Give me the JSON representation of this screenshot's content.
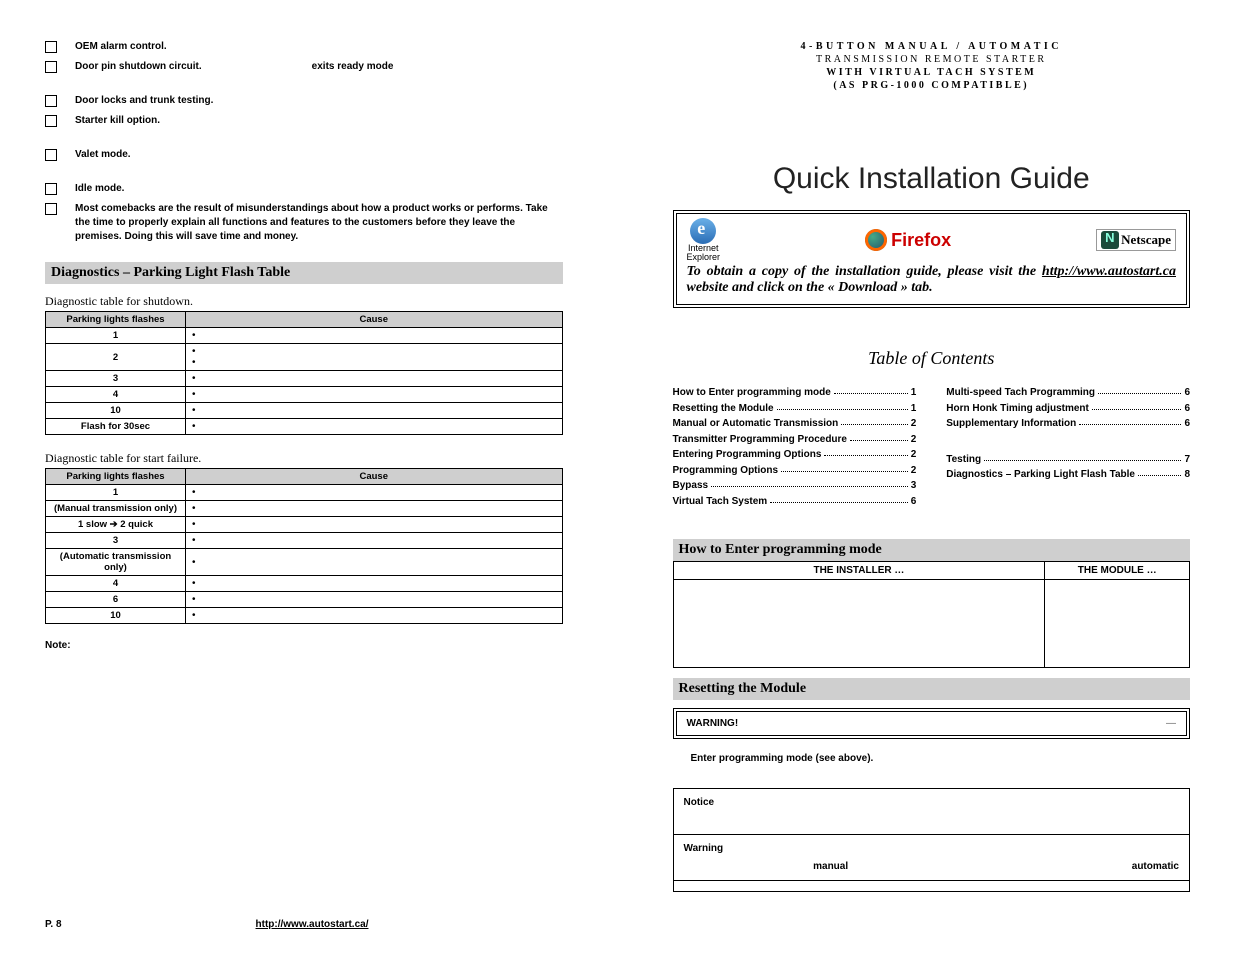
{
  "left": {
    "checklist": [
      {
        "text": "OEM alarm control.",
        "note": ""
      },
      {
        "text": "Door pin shutdown circuit.",
        "note": "exits ready mode"
      },
      {
        "spacer": true
      },
      {
        "text": "Door locks and trunk testing.",
        "note": ""
      },
      {
        "text": "Starter kill option.",
        "note": ""
      },
      {
        "spacer": true
      },
      {
        "text": "Valet mode.",
        "note": ""
      },
      {
        "spacer": true
      },
      {
        "text": "Idle mode.",
        "note": ""
      },
      {
        "text": "Most comebacks are the result of misunderstandings about how a product works or performs. Take the time to properly explain all functions and features to the customers before they leave the premises. Doing this will save time and money.",
        "note": ""
      }
    ],
    "diag_header": "Diagnostics – Parking Light Flash Table",
    "shutdown_caption": "Diagnostic table for shutdown.",
    "start_caption": "Diagnostic table for start failure.",
    "col_flash": "Parking lights flashes",
    "col_cause": "Cause",
    "shutdown_rows": [
      {
        "flash": "1",
        "bullets": 1
      },
      {
        "flash": "2",
        "bullets": 2
      },
      {
        "flash": "3",
        "bullets": 1
      },
      {
        "flash": "4",
        "bullets": 1
      },
      {
        "flash": "10",
        "bullets": 1
      },
      {
        "flash": "Flash for 30sec",
        "bullets": 1
      }
    ],
    "start_rows": [
      {
        "flash": "1",
        "bullets": 1
      },
      {
        "flash": "(Manual transmission only)",
        "bullets": 1
      },
      {
        "flash": "1 slow ➔ 2 quick",
        "bullets": 1
      },
      {
        "flash": "3",
        "bullets": 1
      },
      {
        "flash": "(Automatic transmission only)",
        "bullets": 1
      },
      {
        "flash": "4",
        "bullets": 1
      },
      {
        "flash": "6",
        "bullets": 1
      },
      {
        "flash": "10",
        "bullets": 1
      }
    ],
    "note": "Note:",
    "footer_page": "P. 8",
    "footer_url": "http://www.autostart.ca/"
  },
  "right": {
    "hdr_line1": "4-BUTTON MANUAL / AUTOMATIC",
    "hdr_line2": "TRANSMISSION REMOTE STARTER",
    "hdr_line3a": "WITH ",
    "hdr_line3b": "VIRTUAL TACH SYSTEM",
    "hdr_line4": "(AS PRG-1000 COMPATIBLE)",
    "title": "Quick Installation Guide",
    "ie_label": "Internet\nExplorer",
    "ff_label": "Firefox",
    "ns_label": "Netscape",
    "browser_text_a": "To obtain a copy of the installation guide, please visit the ",
    "browser_url": "http://www.autostart.ca",
    "browser_text_b": " website and click on the « Download » tab.",
    "toc_title": "Table of Contents",
    "toc_left": [
      {
        "label": "How to Enter programming mode",
        "pg": "1"
      },
      {
        "label": "Resetting the Module",
        "pg": "1"
      },
      {
        "label": "Manual or Automatic Transmission",
        "pg": "2"
      },
      {
        "label": "Transmitter Programming Procedure",
        "pg": "2"
      },
      {
        "label": "Entering Programming Options",
        "pg": "2"
      },
      {
        "label": "Programming Options",
        "pg": "2"
      },
      {
        "label": "Bypass",
        "pg": "3"
      },
      {
        "label": "Virtual Tach System",
        "pg": "6"
      }
    ],
    "toc_right": [
      {
        "label": "Multi-speed Tach Programming",
        "pg": "6"
      },
      {
        "label": "Horn Honk Timing adjustment",
        "pg": "6"
      },
      {
        "label": "Supplementary Information",
        "pg": "6"
      },
      {
        "gap": true
      },
      {
        "label": "Testing",
        "pg": "7"
      },
      {
        "label": "Diagnostics – Parking Light Flash Table",
        "pg": "8"
      }
    ],
    "sec_enter": "How to Enter programming mode",
    "th_installer": "THE INSTALLER …",
    "th_module": "THE MODULE …",
    "sec_reset": "Resetting the Module",
    "warning_label": "WARNING!",
    "step1": "Enter programming mode (see above).",
    "notice_label": "Notice",
    "warning2_label": "Warning",
    "kw_manual": "manual",
    "kw_auto": "automatic"
  },
  "colors": {
    "section_bg": "#cfcfcf",
    "text": "#000000",
    "ff_red": "#cc0000"
  }
}
